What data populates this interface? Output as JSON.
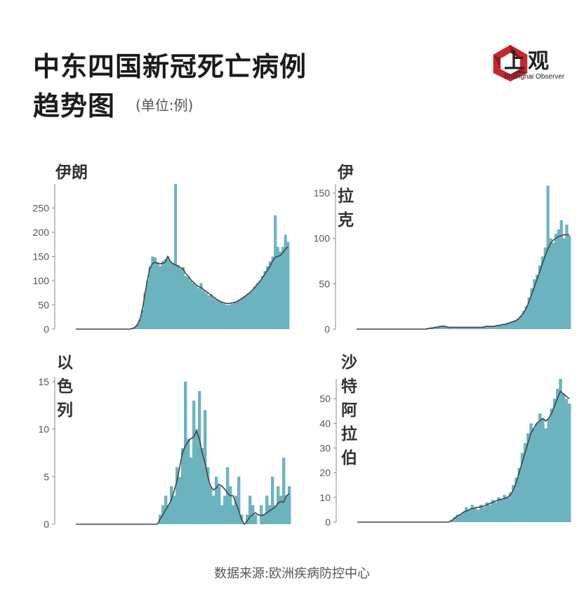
{
  "header": {
    "title_line1": "中东四国新冠死亡病例",
    "title_line2": "趋势图",
    "unit": "(单位:例)"
  },
  "logo": {
    "cn": "上观",
    "en": "Shanghai Observer",
    "colors": {
      "red": "#c8262d",
      "dark": "#222222"
    }
  },
  "footer": {
    "source": "数据来源:欧洲疾病防控中心"
  },
  "colors": {
    "bar": "#6bb4bf",
    "line": "#444444",
    "axis": "#888888"
  },
  "chart_data": [
    {
      "type": "bar",
      "title": "伊朗",
      "ylim": [
        0,
        300
      ],
      "yticks": [
        0,
        50,
        100,
        150,
        200,
        250
      ],
      "ytick_labels": [
        "0",
        "50",
        "100",
        "150",
        "200",
        "250"
      ],
      "series": [
        {
          "kind": "daily",
          "values": [
            0,
            0,
            0,
            0,
            0,
            0,
            0,
            0,
            0,
            0,
            0,
            0,
            0,
            0,
            0,
            0,
            0,
            0,
            0,
            0,
            0,
            0,
            2,
            4,
            10,
            20,
            40,
            75,
            100,
            130,
            150,
            148,
            138,
            130,
            140,
            145,
            150,
            140,
            137,
            300,
            132,
            125,
            128,
            110,
            108,
            100,
            95,
            90,
            85,
            95,
            80,
            75,
            70,
            72,
            65,
            60,
            58,
            55,
            52,
            50,
            50,
            52,
            55,
            57,
            60,
            65,
            68,
            72,
            75,
            80,
            88,
            95,
            100,
            110,
            120,
            130,
            140,
            150,
            235,
            170,
            160,
            170,
            195,
            180
          ]
        },
        {
          "kind": "7-day-average",
          "values": [
            0,
            0,
            0,
            0,
            0,
            0,
            0,
            0,
            0,
            0,
            0,
            0,
            0,
            0,
            0,
            0,
            0,
            0,
            0,
            0,
            0,
            0,
            1,
            3,
            8,
            18,
            38,
            70,
            100,
            125,
            135,
            138,
            136,
            135,
            136,
            138,
            150,
            140,
            135,
            133,
            130,
            127,
            124,
            115,
            110,
            102,
            97,
            92,
            88,
            86,
            82,
            78,
            74,
            70,
            66,
            62,
            59,
            56,
            54,
            53,
            53,
            54,
            55,
            57,
            60,
            63,
            67,
            71,
            75,
            80,
            86,
            92,
            98,
            106,
            114,
            122,
            130,
            140,
            148,
            150,
            152,
            158,
            165,
            170
          ]
        }
      ]
    },
    {
      "type": "bar",
      "title": "伊拉克",
      "ylim": [
        0,
        160
      ],
      "yticks": [
        0,
        50,
        100,
        150
      ],
      "ytick_labels": [
        "0",
        "50",
        "100",
        "150"
      ],
      "series": [
        {
          "kind": "daily",
          "values": [
            0,
            0,
            0,
            0,
            0,
            0,
            0,
            0,
            0,
            0,
            0,
            0,
            0,
            0,
            0,
            0,
            0,
            0,
            0,
            0,
            0,
            0,
            0,
            0,
            0,
            0,
            1,
            1,
            2,
            2,
            3,
            3,
            4,
            3,
            2,
            2,
            1,
            2,
            2,
            2,
            2,
            2,
            2,
            2,
            2,
            2,
            2,
            3,
            3,
            3,
            3,
            3,
            4,
            4,
            5,
            6,
            7,
            8,
            9,
            10,
            12,
            15,
            20,
            25,
            35,
            45,
            55,
            60,
            70,
            80,
            90,
            158,
            100,
            95,
            105,
            110,
            120,
            100,
            115,
            103
          ]
        },
        {
          "kind": "7-day-average",
          "values": [
            0,
            0,
            0,
            0,
            0,
            0,
            0,
            0,
            0,
            0,
            0,
            0,
            0,
            0,
            0,
            0,
            0,
            0,
            0,
            0,
            0,
            0,
            0,
            0,
            0,
            0,
            0,
            1,
            1,
            2,
            2,
            3,
            3,
            3,
            2,
            2,
            2,
            2,
            2,
            2,
            2,
            2,
            2,
            2,
            2,
            2,
            2,
            2,
            3,
            3,
            3,
            3,
            4,
            4,
            5,
            5,
            6,
            7,
            8,
            9,
            11,
            14,
            18,
            23,
            30,
            38,
            46,
            55,
            63,
            72,
            80,
            88,
            94,
            98,
            100,
            102,
            103,
            104,
            104,
            104
          ]
        }
      ]
    },
    {
      "type": "bar",
      "title": "以色列",
      "ylim": [
        0,
        15.5
      ],
      "yticks": [
        0,
        5,
        10,
        15
      ],
      "ytick_labels": [
        "0",
        "5",
        "10",
        "15"
      ],
      "series": [
        {
          "kind": "daily",
          "values": [
            0,
            0,
            0,
            0,
            0,
            0,
            0,
            0,
            0,
            0,
            0,
            0,
            0,
            0,
            0,
            0,
            0,
            0,
            0,
            0,
            0,
            0,
            0,
            0,
            0,
            0,
            0,
            0,
            0,
            0,
            1,
            2,
            3,
            2,
            4,
            3,
            6,
            5,
            8,
            15,
            9,
            7,
            13,
            10,
            14,
            8,
            12,
            6,
            4,
            3,
            5,
            4,
            2,
            3,
            6,
            4,
            2,
            3,
            5,
            1,
            0,
            1,
            3,
            2,
            1,
            0,
            2,
            1,
            3,
            2,
            5,
            2,
            4,
            3,
            7,
            3,
            4
          ]
        },
        {
          "kind": "7-day-average",
          "values": [
            0,
            0,
            0,
            0,
            0,
            0,
            0,
            0,
            0,
            0,
            0,
            0,
            0,
            0,
            0,
            0,
            0,
            0,
            0,
            0,
            0,
            0,
            0,
            0,
            0,
            0,
            0,
            0,
            0,
            0,
            0.5,
            1,
            1.5,
            2,
            2.5,
            3.5,
            4.5,
            6,
            7.5,
            8.2,
            8.7,
            9,
            9.2,
            9.8,
            9,
            7.5,
            6.5,
            5,
            4,
            3.6,
            3.8,
            4.2,
            4,
            3.7,
            3.3,
            3,
            3,
            2.2,
            1.5,
            0.5,
            0,
            0.3,
            0.8,
            1,
            1.2,
            1,
            0.9,
            1,
            1.2,
            1.4,
            1.6,
            1.8,
            2.2,
            2.4,
            2.3,
            3,
            3.2
          ]
        }
      ]
    },
    {
      "type": "bar",
      "title": "沙特阿拉伯",
      "ylim": [
        0,
        58
      ],
      "yticks": [
        0,
        10,
        20,
        30,
        40,
        50
      ],
      "ytick_labels": [
        "0",
        "10",
        "20",
        "30",
        "40",
        "50"
      ],
      "series": [
        {
          "kind": "daily",
          "values": [
            0,
            0,
            0,
            0,
            0,
            0,
            0,
            0,
            0,
            0,
            0,
            0,
            0,
            0,
            0,
            0,
            0,
            0,
            0,
            0,
            0,
            0,
            0,
            0,
            0,
            0,
            0,
            0,
            0,
            0,
            0,
            0,
            1,
            2,
            3,
            3,
            4,
            6,
            5,
            7,
            6,
            5,
            7,
            6,
            8,
            7,
            9,
            8,
            10,
            9,
            11,
            10,
            12,
            15,
            18,
            22,
            28,
            32,
            36,
            40,
            38,
            40,
            44,
            42,
            38,
            42,
            46,
            50,
            54,
            58,
            52,
            50,
            48
          ]
        },
        {
          "kind": "7-day-average",
          "values": [
            0,
            0,
            0,
            0,
            0,
            0,
            0,
            0,
            0,
            0,
            0,
            0,
            0,
            0,
            0,
            0,
            0,
            0,
            0,
            0,
            0,
            0,
            0,
            0,
            0,
            0,
            0,
            0,
            0,
            0,
            0,
            0,
            0.5,
            1.5,
            2.5,
            3,
            4,
            4.5,
            5,
            5.5,
            5.8,
            6,
            6.2,
            6.5,
            7,
            7.5,
            8,
            8.5,
            9,
            9.2,
            9.6,
            10,
            11,
            13,
            16,
            20,
            24,
            28,
            32,
            36,
            38,
            40,
            41,
            42,
            41,
            42,
            44,
            47,
            50,
            53,
            52,
            51,
            50
          ]
        }
      ]
    }
  ]
}
